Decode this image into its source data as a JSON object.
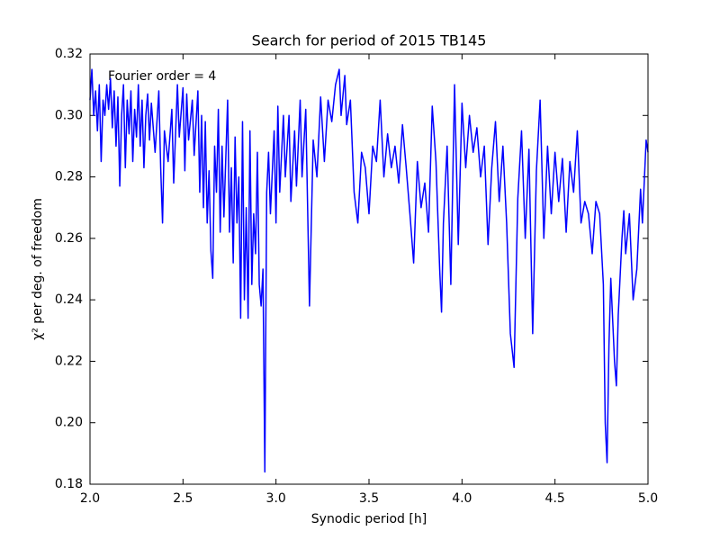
{
  "chart_data": {
    "type": "line",
    "title": "Search for period of 2015 TB145",
    "x_label": "Synodic period [h]",
    "y_label": "χ² per deg. of freedom",
    "annotation": "Fourier order =  4",
    "xlim": [
      2.0,
      5.0
    ],
    "ylim": [
      0.18,
      0.32
    ],
    "xticks": [
      {
        "value": 2.0,
        "label": "2.0"
      },
      2.5,
      {
        "value": 3.0,
        "label": "3.0"
      },
      3.5,
      {
        "value": 4.0,
        "label": "4.0"
      },
      4.5,
      {
        "value": 5.0,
        "label": "5.0"
      }
    ],
    "yticks": [
      0.18,
      {
        "value": 0.2,
        "label": "0.20"
      },
      0.22,
      0.24,
      0.26,
      0.28,
      {
        "value": 0.3,
        "label": "0.30"
      },
      0.32
    ],
    "grid": false,
    "x": [
      2.0,
      2.01,
      2.02,
      2.03,
      2.04,
      2.05,
      2.06,
      2.07,
      2.08,
      2.09,
      2.1,
      2.11,
      2.12,
      2.13,
      2.14,
      2.15,
      2.16,
      2.17,
      2.18,
      2.19,
      2.2,
      2.21,
      2.22,
      2.23,
      2.24,
      2.25,
      2.26,
      2.27,
      2.28,
      2.29,
      2.3,
      2.31,
      2.32,
      2.33,
      2.35,
      2.37,
      2.38,
      2.39,
      2.4,
      2.42,
      2.44,
      2.45,
      2.47,
      2.48,
      2.5,
      2.51,
      2.52,
      2.53,
      2.55,
      2.56,
      2.58,
      2.59,
      2.6,
      2.61,
      2.62,
      2.63,
      2.64,
      2.65,
      2.66,
      2.67,
      2.68,
      2.69,
      2.7,
      2.71,
      2.72,
      2.74,
      2.75,
      2.76,
      2.77,
      2.78,
      2.79,
      2.8,
      2.81,
      2.82,
      2.83,
      2.84,
      2.85,
      2.86,
      2.87,
      2.88,
      2.89,
      2.9,
      2.91,
      2.92,
      2.93,
      2.94,
      2.95,
      2.96,
      2.97,
      2.99,
      3.0,
      3.01,
      3.02,
      3.04,
      3.05,
      3.07,
      3.08,
      3.1,
      3.11,
      3.13,
      3.14,
      3.16,
      3.18,
      3.2,
      3.22,
      3.24,
      3.26,
      3.28,
      3.3,
      3.32,
      3.34,
      3.35,
      3.37,
      3.38,
      3.4,
      3.42,
      3.44,
      3.46,
      3.48,
      3.5,
      3.52,
      3.54,
      3.56,
      3.58,
      3.6,
      3.62,
      3.64,
      3.66,
      3.68,
      3.7,
      3.72,
      3.74,
      3.76,
      3.78,
      3.8,
      3.82,
      3.84,
      3.86,
      3.88,
      3.89,
      3.9,
      3.92,
      3.94,
      3.96,
      3.98,
      4.0,
      4.02,
      4.04,
      4.06,
      4.08,
      4.1,
      4.12,
      4.14,
      4.16,
      4.18,
      4.2,
      4.22,
      4.24,
      4.26,
      4.28,
      4.3,
      4.32,
      4.34,
      4.36,
      4.38,
      4.4,
      4.42,
      4.44,
      4.46,
      4.48,
      4.5,
      4.52,
      4.54,
      4.56,
      4.58,
      4.6,
      4.62,
      4.64,
      4.66,
      4.68,
      4.7,
      4.72,
      4.74,
      4.76,
      4.77,
      4.78,
      4.79,
      4.8,
      4.82,
      4.83,
      4.84,
      4.86,
      4.87,
      4.88,
      4.9,
      4.92,
      4.94,
      4.96,
      4.97,
      4.99,
      5.0
    ],
    "series": [
      {
        "color": "#0000ff",
        "values": [
          0.305,
          0.315,
          0.3,
          0.308,
          0.295,
          0.31,
          0.285,
          0.305,
          0.3,
          0.31,
          0.302,
          0.312,
          0.296,
          0.308,
          0.29,
          0.306,
          0.277,
          0.3,
          0.31,
          0.283,
          0.305,
          0.294,
          0.308,
          0.285,
          0.302,
          0.293,
          0.31,
          0.29,
          0.305,
          0.283,
          0.3,
          0.307,
          0.292,
          0.304,
          0.288,
          0.308,
          0.283,
          0.265,
          0.295,
          0.285,
          0.302,
          0.278,
          0.31,
          0.293,
          0.309,
          0.282,
          0.307,
          0.292,
          0.305,
          0.287,
          0.308,
          0.275,
          0.3,
          0.27,
          0.298,
          0.265,
          0.282,
          0.256,
          0.247,
          0.29,
          0.275,
          0.302,
          0.262,
          0.29,
          0.267,
          0.305,
          0.262,
          0.283,
          0.252,
          0.293,
          0.265,
          0.28,
          0.234,
          0.298,
          0.24,
          0.27,
          0.234,
          0.295,
          0.245,
          0.268,
          0.255,
          0.288,
          0.245,
          0.238,
          0.25,
          0.184,
          0.275,
          0.288,
          0.268,
          0.295,
          0.265,
          0.303,
          0.275,
          0.3,
          0.28,
          0.3,
          0.272,
          0.295,
          0.277,
          0.305,
          0.28,
          0.302,
          0.238,
          0.292,
          0.28,
          0.306,
          0.285,
          0.305,
          0.298,
          0.31,
          0.315,
          0.3,
          0.313,
          0.297,
          0.305,
          0.275,
          0.265,
          0.288,
          0.283,
          0.268,
          0.29,
          0.285,
          0.305,
          0.28,
          0.294,
          0.283,
          0.29,
          0.278,
          0.297,
          0.283,
          0.268,
          0.252,
          0.285,
          0.27,
          0.278,
          0.262,
          0.303,
          0.285,
          0.25,
          0.236,
          0.265,
          0.29,
          0.245,
          0.31,
          0.258,
          0.304,
          0.283,
          0.3,
          0.288,
          0.296,
          0.28,
          0.29,
          0.258,
          0.283,
          0.298,
          0.272,
          0.29,
          0.265,
          0.229,
          0.218,
          0.273,
          0.295,
          0.26,
          0.289,
          0.229,
          0.282,
          0.305,
          0.26,
          0.29,
          0.268,
          0.288,
          0.272,
          0.286,
          0.262,
          0.285,
          0.275,
          0.295,
          0.265,
          0.272,
          0.268,
          0.255,
          0.272,
          0.268,
          0.245,
          0.2,
          0.187,
          0.225,
          0.247,
          0.22,
          0.212,
          0.235,
          0.26,
          0.269,
          0.255,
          0.268,
          0.24,
          0.25,
          0.276,
          0.265,
          0.292,
          0.288
        ]
      }
    ]
  }
}
